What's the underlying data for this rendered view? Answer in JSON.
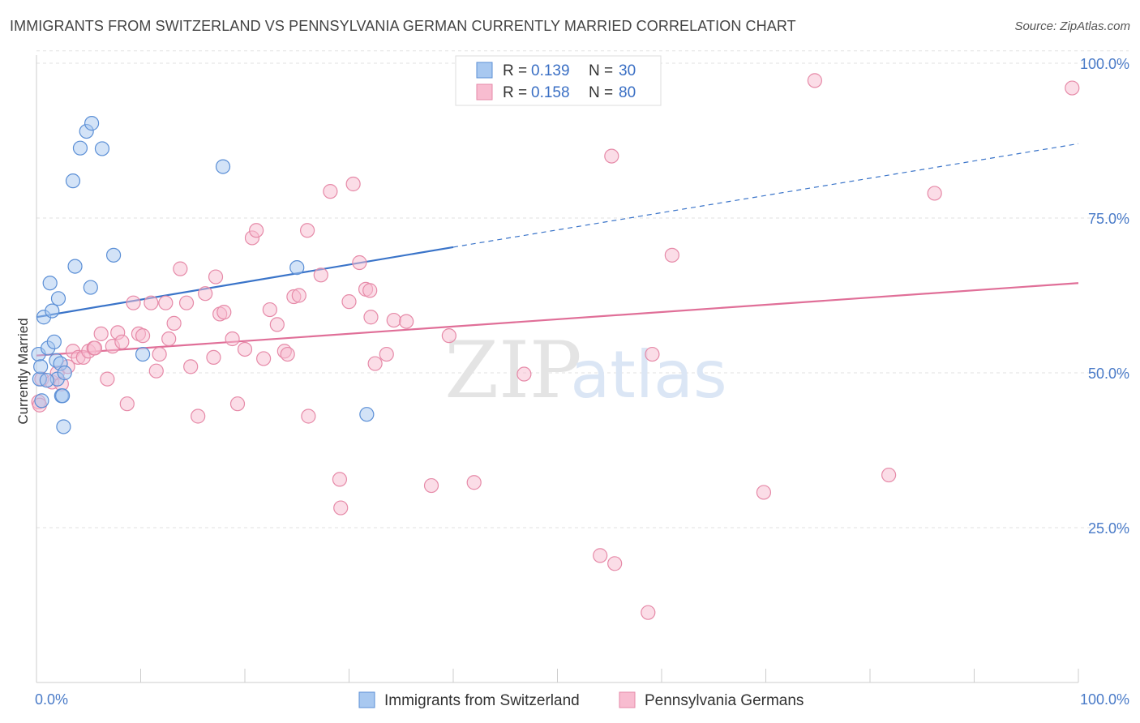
{
  "title": "IMMIGRANTS FROM SWITZERLAND VS PENNSYLVANIA GERMAN CURRENTLY MARRIED CORRELATION CHART",
  "source": "Source: ZipAtlas.com",
  "watermark": {
    "zip": "ZIP",
    "atlas": "atlas"
  },
  "legend": {
    "rows": [
      {
        "r_label": "R = ",
        "r_value": "0.139",
        "n_label": "N = ",
        "n_value": "30",
        "color": "#a8c8f0",
        "stroke": "#5b8fd6"
      },
      {
        "r_label": "R = ",
        "r_value": "0.158",
        "n_label": "N = ",
        "n_value": "80",
        "color": "#f8bcd0",
        "stroke": "#e68aa8"
      }
    ]
  },
  "chart_data": {
    "type": "scatter",
    "title": "IMMIGRANTS FROM SWITZERLAND VS PENNSYLVANIA GERMAN CURRENTLY MARRIED CORRELATION CHART",
    "xlabel": "",
    "ylabel": "Currently Married",
    "xlim": [
      0,
      100
    ],
    "ylim": [
      0,
      103
    ],
    "x_ticks": [
      "0.0%",
      "100.0%"
    ],
    "y_ticks": [
      {
        "value": 25,
        "label": "25.0%"
      },
      {
        "value": 50,
        "label": "50.0%"
      },
      {
        "value": 75,
        "label": "75.0%"
      },
      {
        "value": 100,
        "label": "100.0%"
      }
    ],
    "grid": true,
    "legend_position": "top-center",
    "series": [
      {
        "name": "Immigrants from Switzerland",
        "color": "#a8c8f0",
        "stroke": "#5b8fd6",
        "trend": {
          "x0": 0,
          "y0": 59.0,
          "x1": 40,
          "y1": 70.3,
          "dash_to_x": 100,
          "dash_to_y": 87.0,
          "color": "#3a74c9"
        },
        "points": [
          [
            0.2,
            53
          ],
          [
            0.3,
            49
          ],
          [
            0.4,
            51
          ],
          [
            0.7,
            59
          ],
          [
            1.1,
            54
          ],
          [
            1.3,
            64.5
          ],
          [
            1.5,
            60
          ],
          [
            1.7,
            55
          ],
          [
            1.9,
            52
          ],
          [
            2.0,
            49
          ],
          [
            2.1,
            62
          ],
          [
            2.3,
            51.5
          ],
          [
            2.4,
            46.3
          ],
          [
            2.5,
            46.3
          ],
          [
            2.7,
            50
          ],
          [
            2.6,
            41.3
          ],
          [
            3.5,
            81
          ],
          [
            3.7,
            67.2
          ],
          [
            4.2,
            86.3
          ],
          [
            4.8,
            89
          ],
          [
            5.2,
            63.8
          ],
          [
            5.3,
            90.3
          ],
          [
            6.3,
            86.2
          ],
          [
            7.4,
            69
          ],
          [
            10.2,
            53
          ],
          [
            17.9,
            83.3
          ],
          [
            25.0,
            67
          ],
          [
            31.7,
            43.3
          ],
          [
            0.5,
            45.5
          ],
          [
            1.0,
            48.8
          ]
        ]
      },
      {
        "name": "Pennsylvania Germans",
        "color": "#f8bcd0",
        "stroke": "#e68aa8",
        "trend": {
          "x0": 0,
          "y0": 52.8,
          "x1": 100,
          "y1": 64.5,
          "color": "#e06f98"
        },
        "points": [
          [
            0.2,
            45.3
          ],
          [
            0.5,
            49
          ],
          [
            1.5,
            48.5
          ],
          [
            2.0,
            50
          ],
          [
            3.0,
            51
          ],
          [
            3.5,
            53.5
          ],
          [
            4.0,
            52.5
          ],
          [
            4.5,
            52.5
          ],
          [
            5.0,
            53.5
          ],
          [
            5.5,
            54
          ],
          [
            5.6,
            54
          ],
          [
            6.2,
            56.3
          ],
          [
            6.8,
            49
          ],
          [
            7.3,
            54.3
          ],
          [
            7.8,
            56.5
          ],
          [
            8.2,
            55
          ],
          [
            8.7,
            45
          ],
          [
            9.3,
            61.3
          ],
          [
            9.8,
            56.3
          ],
          [
            10.2,
            56
          ],
          [
            11.0,
            61.3
          ],
          [
            11.5,
            50.3
          ],
          [
            11.8,
            53
          ],
          [
            12.4,
            61.3
          ],
          [
            12.7,
            55.5
          ],
          [
            13.2,
            58
          ],
          [
            13.8,
            66.8
          ],
          [
            14.4,
            61.3
          ],
          [
            14.8,
            51
          ],
          [
            15.5,
            43
          ],
          [
            16.2,
            62.8
          ],
          [
            17.0,
            52.5
          ],
          [
            17.2,
            65.5
          ],
          [
            17.6,
            59.5
          ],
          [
            18.0,
            59.8
          ],
          [
            18.8,
            55.5
          ],
          [
            19.3,
            45
          ],
          [
            20.0,
            53.8
          ],
          [
            20.7,
            71.8
          ],
          [
            21.1,
            73
          ],
          [
            21.8,
            52.3
          ],
          [
            22.4,
            60.2
          ],
          [
            23.1,
            57.8
          ],
          [
            23.8,
            53.5
          ],
          [
            24.1,
            53
          ],
          [
            24.7,
            62.3
          ],
          [
            25.2,
            62.5
          ],
          [
            26.0,
            73
          ],
          [
            26.1,
            43
          ],
          [
            27.3,
            65.8
          ],
          [
            28.2,
            79.3
          ],
          [
            29.1,
            32.8
          ],
          [
            29.2,
            28.2
          ],
          [
            30.0,
            61.5
          ],
          [
            30.4,
            80.5
          ],
          [
            31.0,
            67.8
          ],
          [
            31.6,
            63.5
          ],
          [
            32.0,
            63.3
          ],
          [
            32.1,
            59
          ],
          [
            32.5,
            51.5
          ],
          [
            33.6,
            53
          ],
          [
            34.3,
            58.5
          ],
          [
            35.5,
            58.3
          ],
          [
            37.9,
            31.8
          ],
          [
            39.6,
            56
          ],
          [
            42.0,
            32.3
          ],
          [
            46.8,
            49.8
          ],
          [
            54.1,
            20.5
          ],
          [
            55.2,
            85
          ],
          [
            55.5,
            19.2
          ],
          [
            59.1,
            53
          ],
          [
            58.7,
            11.3
          ],
          [
            61.0,
            69
          ],
          [
            74.7,
            97.2
          ],
          [
            69.8,
            30.7
          ],
          [
            81.8,
            33.5
          ],
          [
            86.2,
            79
          ],
          [
            99.4,
            96
          ],
          [
            0.3,
            44.8
          ],
          [
            2.4,
            48.2
          ]
        ]
      }
    ]
  },
  "bottom_legend": [
    {
      "label": "Immigrants from Switzerland",
      "color": "#a8c8f0",
      "stroke": "#5b8fd6"
    },
    {
      "label": "Pennsylvania Germans",
      "color": "#f8bcd0",
      "stroke": "#e68aa8"
    }
  ]
}
